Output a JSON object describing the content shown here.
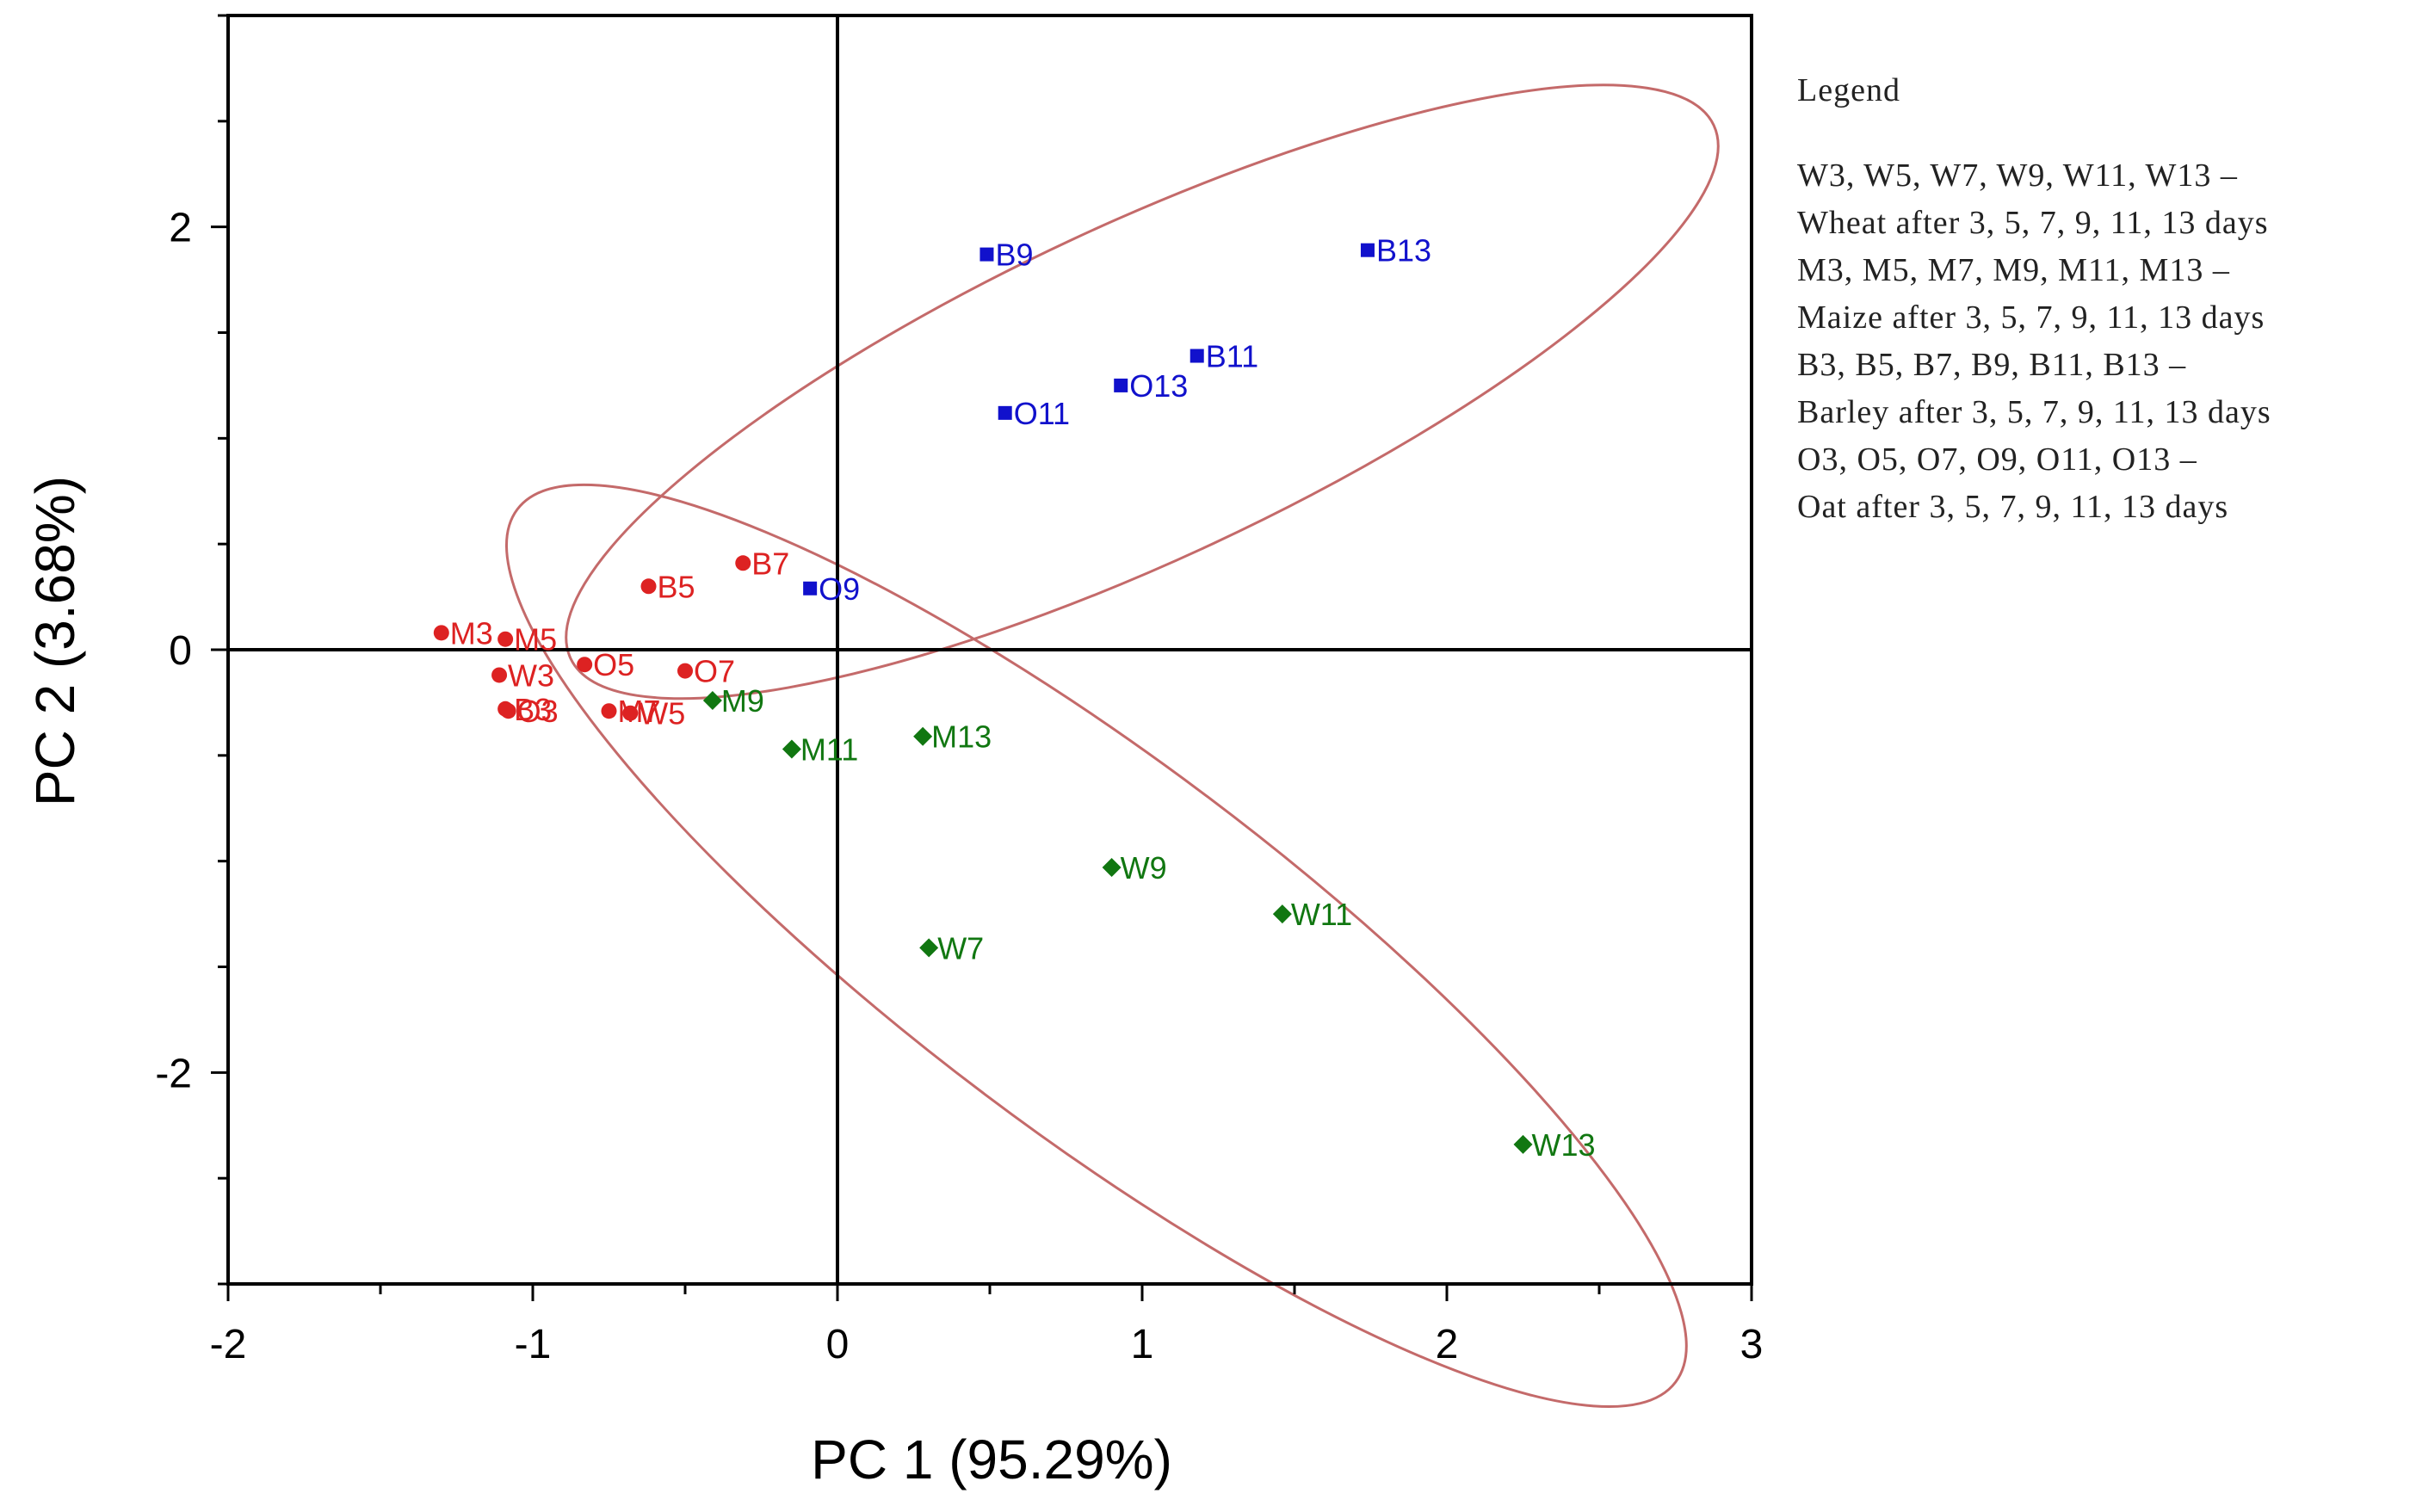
{
  "chart_data": {
    "type": "scatter",
    "xlabel": "PC 1 (95.29%)",
    "ylabel": "PC 2 (3.68%)",
    "xlim": [
      -2,
      3
    ],
    "ylim": [
      -3,
      3
    ],
    "xticks": [
      -2,
      -1,
      0,
      1,
      2,
      3
    ],
    "yticks": [
      -2,
      0,
      2
    ],
    "grid": false,
    "zero_lines": true,
    "series": [
      {
        "name": "Group 1",
        "color": "#dd2222",
        "marker": "circle",
        "points": [
          {
            "label": "M3",
            "x": -1.3,
            "y": 0.08
          },
          {
            "label": "M5",
            "x": -1.09,
            "y": 0.05
          },
          {
            "label": "W3",
            "x": -1.11,
            "y": -0.12
          },
          {
            "label": "O5",
            "x": -0.83,
            "y": -0.07
          },
          {
            "label": "O7",
            "x": -0.5,
            "y": -0.1
          },
          {
            "label": "B3",
            "x": -1.09,
            "y": -0.28
          },
          {
            "label": "O3",
            "x": -1.08,
            "y": -0.29
          },
          {
            "label": "M7",
            "x": -0.75,
            "y": -0.29
          },
          {
            "label": "W5",
            "x": -0.68,
            "y": -0.3
          },
          {
            "label": "B5",
            "x": -0.62,
            "y": 0.3
          },
          {
            "label": "B7",
            "x": -0.31,
            "y": 0.41
          }
        ]
      },
      {
        "name": "Group 2",
        "color": "#1111cc",
        "marker": "square",
        "points": [
          {
            "label": "O9",
            "x": -0.09,
            "y": 0.29
          },
          {
            "label": "O11",
            "x": 0.55,
            "y": 1.12
          },
          {
            "label": "O13",
            "x": 0.93,
            "y": 1.25
          },
          {
            "label": "B11",
            "x": 1.18,
            "y": 1.39
          },
          {
            "label": "B9",
            "x": 0.49,
            "y": 1.87
          },
          {
            "label": "B13",
            "x": 1.74,
            "y": 1.89
          }
        ]
      },
      {
        "name": "Group 3",
        "color": "#117711",
        "marker": "diamond",
        "points": [
          {
            "label": "M9",
            "x": -0.41,
            "y": -0.24
          },
          {
            "label": "M11",
            "x": -0.15,
            "y": -0.47
          },
          {
            "label": "M13",
            "x": 0.28,
            "y": -0.41
          },
          {
            "label": "W9",
            "x": 0.9,
            "y": -1.03
          },
          {
            "label": "W11",
            "x": 1.46,
            "y": -1.25
          },
          {
            "label": "W7",
            "x": 0.3,
            "y": -1.41
          },
          {
            "label": "W13",
            "x": 2.25,
            "y": -2.34
          }
        ]
      }
    ],
    "ellipses": [
      {
        "name": "ellipse-upper",
        "color": "#c46a6a",
        "cx": 1.0,
        "cy": 1.22,
        "rx": 2.07,
        "ry": 0.55,
        "angle_deg": 25
      },
      {
        "name": "ellipse-lower",
        "color": "#c46a6a",
        "cx": 0.85,
        "cy": -1.4,
        "rx": 2.38,
        "ry": 0.61,
        "angle_deg": -37
      }
    ]
  },
  "legend": {
    "title": "Legend",
    "lines": [
      "W3, W5, W7, W9, W11, W13 –",
      "Wheat after 3, 5, 7, 9, 11, 13 days",
      "M3, M5, M7, M9, M11, M13 –",
      "Maize after 3, 5, 7, 9, 11, 13 days",
      "B3, B5, B7, B9, B11, B13 –",
      "Barley after 3, 5, 7, 9, 11, 13 days",
      "O3, O5, O7, O9, O11, O13 –",
      "Oat after 3, 5, 7, 9, 11, 13 days"
    ]
  }
}
